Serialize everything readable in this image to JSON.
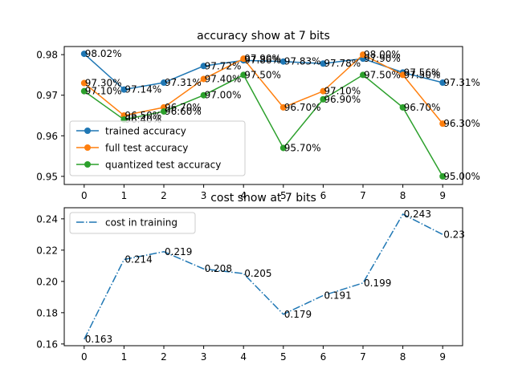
{
  "chart_data": [
    {
      "type": "line",
      "title": "accuracy show at 7 bits",
      "x": [
        0,
        1,
        2,
        3,
        4,
        5,
        6,
        7,
        8,
        9
      ],
      "xticks": [
        "0",
        "1",
        "2",
        "3",
        "4",
        "5",
        "6",
        "7",
        "8",
        "9"
      ],
      "ylim": [
        0.948,
        0.982
      ],
      "yticks": [
        "0.95",
        "0.96",
        "0.97",
        "0.98"
      ],
      "yticks_values": [
        0.95,
        0.96,
        0.97,
        0.98
      ],
      "legend_position": "lower-left",
      "grid": false,
      "series": [
        {
          "name": "trained accuracy",
          "color": "#1f77b4",
          "style": "solid",
          "marker": true,
          "values": [
            0.9802,
            0.9714,
            0.9731,
            0.9772,
            0.9786,
            0.9783,
            0.9778,
            0.979,
            0.9756,
            0.9731
          ],
          "labels": [
            "98.02%",
            "97.14%",
            "97.31%",
            "97.72%",
            "97.86%",
            "97.83%",
            "97.78%",
            "97.90%",
            "97.56%",
            "97.31%"
          ]
        },
        {
          "name": "full test accuracy",
          "color": "#ff7f0e",
          "style": "solid",
          "marker": true,
          "values": [
            0.973,
            0.965,
            0.967,
            0.974,
            0.979,
            0.967,
            0.971,
            0.98,
            0.975,
            0.963
          ],
          "labels": [
            "97.30%",
            "96.50%",
            "96.70%",
            "97.40%",
            "97.90%",
            "96.70%",
            "97.10%",
            "98.00%",
            "97.50%",
            "96.30%"
          ]
        },
        {
          "name": "quantized test accuracy",
          "color": "#2ca02c",
          "style": "solid",
          "marker": true,
          "values": [
            0.971,
            0.964,
            0.966,
            0.97,
            0.975,
            0.957,
            0.969,
            0.975,
            0.967,
            0.95
          ],
          "labels": [
            "97.10%",
            "96.40%",
            "96.60%",
            "97.00%",
            "97.50%",
            "95.70%",
            "96.90%",
            "97.50%",
            "96.70%",
            "95.00%"
          ]
        }
      ]
    },
    {
      "type": "line",
      "title": "cost show at 7 bits",
      "x": [
        0,
        1,
        2,
        3,
        4,
        5,
        6,
        7,
        8,
        9
      ],
      "xticks": [
        "0",
        "1",
        "2",
        "3",
        "4",
        "5",
        "6",
        "7",
        "8",
        "9"
      ],
      "ylim": [
        0.1589,
        0.2471
      ],
      "yticks": [
        "0.16",
        "0.18",
        "0.20",
        "0.22",
        "0.24"
      ],
      "yticks_values": [
        0.16,
        0.18,
        0.2,
        0.22,
        0.24
      ],
      "legend_position": "upper-left",
      "grid": false,
      "series": [
        {
          "name": "cost in training",
          "color": "#1f77b4",
          "style": "dashdot",
          "marker": false,
          "values": [
            0.163,
            0.214,
            0.219,
            0.208,
            0.205,
            0.179,
            0.191,
            0.199,
            0.243,
            0.23
          ],
          "labels": [
            "0.163",
            "0.214",
            "0.219",
            "0.208",
            "0.205",
            "0.179",
            "0.191",
            "0.199",
            "0.243",
            "0.23"
          ]
        }
      ]
    }
  ]
}
